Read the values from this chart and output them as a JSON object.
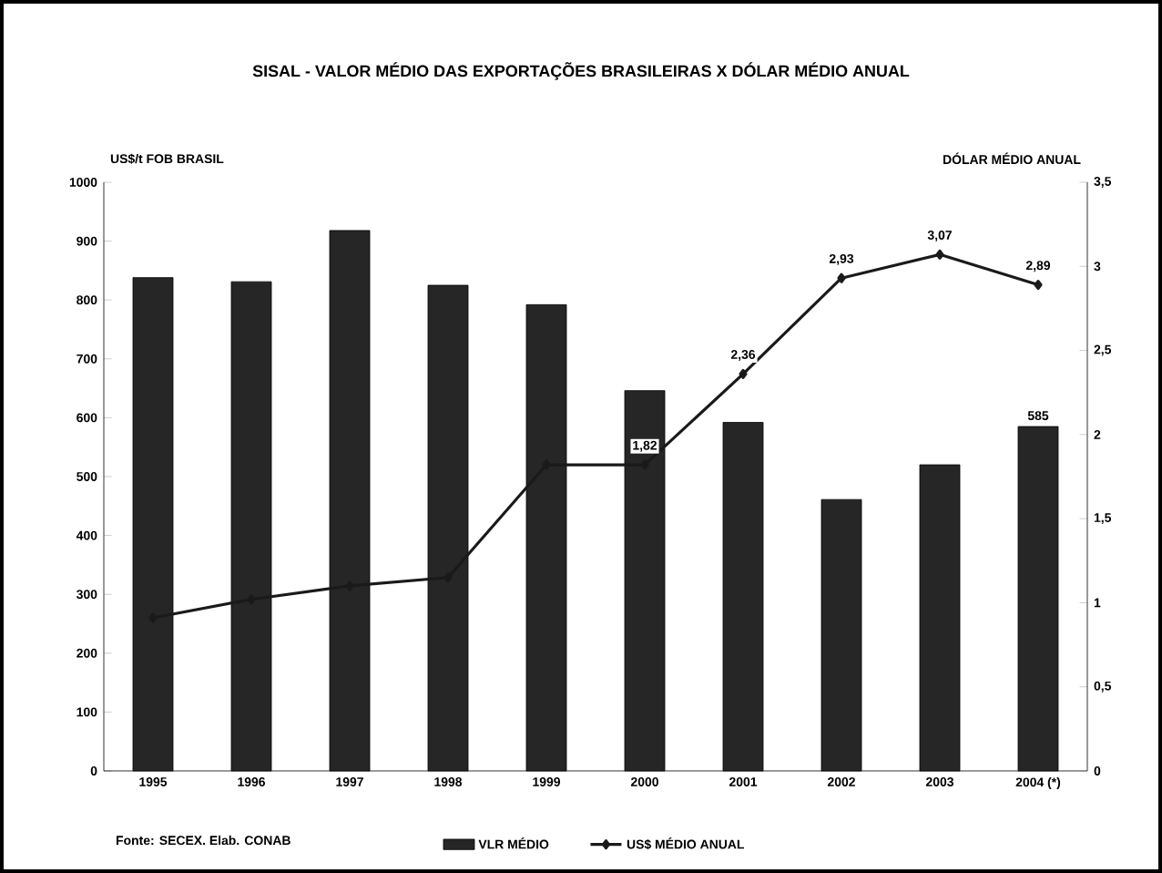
{
  "chart_data": {
    "type": "bar",
    "title": "SISAL - VALOR MÉDIO DAS EXPORTAÇÕES BRASILEIRAS  X  DÓLAR MÉDIO ANUAL",
    "ylabel": "US$/t FOB BRASIL",
    "y2label": "DÓLAR MÉDIO ANUAL",
    "categories": [
      "1995",
      "1996",
      "1997",
      "1998",
      "1999",
      "2000",
      "2001",
      "2002",
      "2003",
      "2004 (*)"
    ],
    "series": [
      {
        "name": "VLR MÉDIO",
        "type": "bar",
        "color": "#262626",
        "values": [
          838,
          831,
          918,
          825,
          792,
          646,
          592,
          461,
          520,
          585
        ],
        "value_labels": [
          null,
          null,
          null,
          null,
          null,
          null,
          null,
          null,
          null,
          "585"
        ]
      },
      {
        "name": "US$ MÉDIO ANUAL",
        "type": "line",
        "axis": "y2",
        "color": "#1a1a1a",
        "marker": "diamond",
        "values": [
          0.91,
          1.02,
          1.1,
          1.15,
          1.82,
          1.82,
          2.36,
          2.93,
          3.07,
          2.89
        ],
        "value_labels": [
          null,
          null,
          null,
          null,
          null,
          "1,82",
          "2,36",
          "2,93",
          "3,07",
          "2,89"
        ]
      }
    ],
    "ylim": [
      0,
      1000
    ],
    "yticks": [
      0,
      100,
      200,
      300,
      400,
      500,
      600,
      700,
      800,
      900,
      1000
    ],
    "y2lim": [
      0,
      3.5
    ],
    "y2ticks": [
      0,
      {
        "value": 0.5,
        "label": "0,5"
      },
      1,
      {
        "value": 1.5,
        "label": "1,5"
      },
      2,
      {
        "value": 2.5,
        "label": "2,5"
      },
      3,
      {
        "value": 3.5,
        "label": "3,5"
      }
    ],
    "legend": "bottom",
    "grid": false,
    "annotations": [
      "Fonte: SECEX. Elab. CONAB"
    ]
  }
}
